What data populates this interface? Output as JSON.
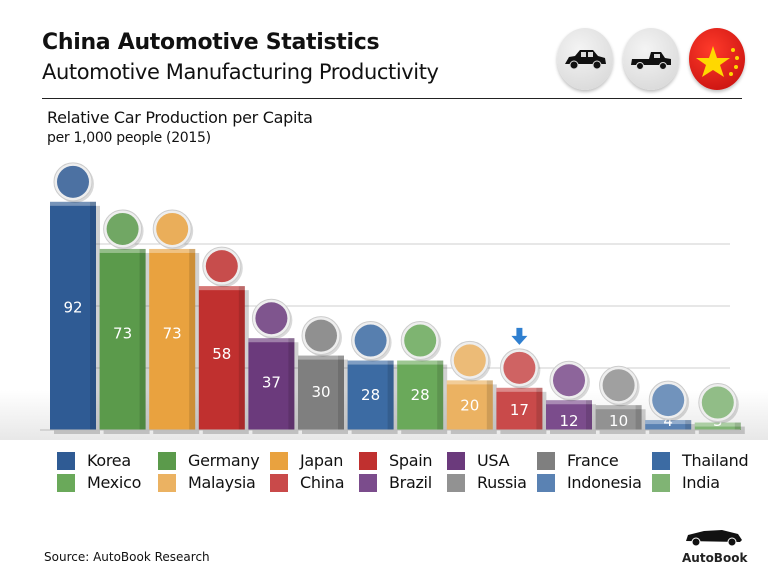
{
  "header": {
    "title": "China Automotive Statistics",
    "subtitle": "Automotive Manufacturing Productivity",
    "icons": [
      "sedan-car-icon",
      "pickup-truck-icon",
      "china-flag-icon"
    ]
  },
  "source": "Source: AutoBook Research",
  "logo": {
    "text": "AutoBook",
    "icon": "sports-car-icon"
  },
  "chart_data": {
    "type": "bar",
    "title": "Relative Car Production per Capita",
    "subtitle": "per 1,000 people (2015)",
    "categories": [
      "Korea",
      "Germany",
      "Japan",
      "Spain",
      "USA",
      "France",
      "Thailand",
      "Mexico",
      "Malaysia",
      "China",
      "Brazil",
      "Russia",
      "Indonesia",
      "India"
    ],
    "values": [
      92,
      73,
      73,
      58,
      37,
      30,
      28,
      28,
      20,
      17,
      12,
      10,
      4,
      3
    ],
    "colors": [
      "#2f5b94",
      "#5b9a4b",
      "#e9a23f",
      "#c0302f",
      "#6b3a7c",
      "#7f7f7f",
      "#3c6ba3",
      "#6aa95a",
      "#ebb262",
      "#c94a4a",
      "#7b4c8c",
      "#929292",
      "#5a82b3",
      "#80b474"
    ],
    "highlight": "China",
    "highlight_icon": "down-arrow-icon",
    "ylim": [
      0,
      100
    ],
    "grid": true,
    "legend": {
      "placement": "bottom",
      "order": [
        "Korea",
        "Germany",
        "Japan",
        "Spain",
        "USA",
        "France",
        "Thailand",
        "Mexico",
        "Malaysia",
        "China",
        "Brazil",
        "Russia",
        "Indonesia",
        "India"
      ]
    }
  }
}
